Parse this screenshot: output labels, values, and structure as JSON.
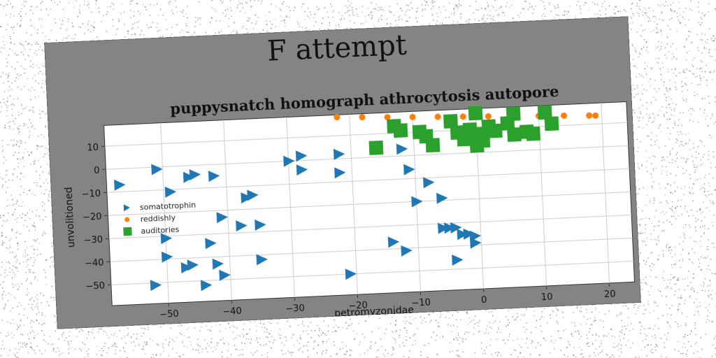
{
  "figure": {
    "suptitle": "F attempt",
    "axes_title": "puppysnatch homograph athrocytosis autopore"
  },
  "chart_data": {
    "type": "scatter",
    "title": "puppysnatch homograph athrocytosis autopore",
    "xlabel": "petromyzonidae",
    "ylabel": "unvolitioned",
    "xlim": [
      -59,
      24
    ],
    "ylim": [
      -59,
      19
    ],
    "xticks": [
      -50,
      -40,
      -30,
      -20,
      -10,
      0,
      10,
      20
    ],
    "yticks": [
      10,
      0,
      -10,
      -20,
      -30,
      -40,
      -50
    ],
    "grid": true,
    "legend_position": "center-left",
    "series": [
      {
        "name": "somatotrophin",
        "marker": "triangle-right",
        "color": "#1f77b4",
        "points": [
          [
            -57,
            -7
          ],
          [
            -51,
            -1
          ],
          [
            -49,
            -11
          ],
          [
            -46,
            -5
          ],
          [
            -45,
            -4
          ],
          [
            -42,
            -5
          ],
          [
            -52,
            -51
          ],
          [
            -50,
            -31
          ],
          [
            -50,
            -39
          ],
          [
            -47,
            -44
          ],
          [
            -46,
            -43
          ],
          [
            -44,
            -52
          ],
          [
            -42,
            -43
          ],
          [
            -41,
            -48
          ],
          [
            -43,
            -34
          ],
          [
            -41,
            -23
          ],
          [
            -38,
            -27
          ],
          [
            -37,
            -15
          ],
          [
            -36,
            -14
          ],
          [
            -35,
            -42
          ],
          [
            -35,
            -27
          ],
          [
            -30,
            0
          ],
          [
            -28,
            2
          ],
          [
            -28,
            -4
          ],
          [
            -22,
            -6
          ],
          [
            -22,
            2
          ],
          [
            -21,
            -50
          ],
          [
            -14,
            -37
          ],
          [
            -12,
            -41
          ],
          [
            -12,
            3
          ],
          [
            -11,
            -6
          ],
          [
            -10,
            -20
          ],
          [
            -8,
            -12
          ],
          [
            -6,
            -19
          ],
          [
            -6,
            -32
          ],
          [
            -5,
            -32
          ],
          [
            -4,
            -32
          ],
          [
            -3,
            -35
          ],
          [
            -2,
            -35
          ],
          [
            -1,
            -36
          ],
          [
            -1,
            -39
          ],
          [
            -4,
            -46
          ]
        ]
      },
      {
        "name": "reddishly",
        "marker": "circle",
        "color": "#ff7f0e",
        "points": [
          [
            -22,
            18
          ],
          [
            -18,
            17.5
          ],
          [
            -14,
            17
          ],
          [
            -10,
            16.6
          ],
          [
            -6,
            16.2
          ],
          [
            -2,
            15.8
          ],
          [
            2,
            15.4
          ],
          [
            6,
            15
          ],
          [
            10,
            14.6
          ],
          [
            14,
            14.2
          ],
          [
            18,
            13.8
          ],
          [
            19,
            13.6
          ]
        ]
      },
      {
        "name": "auditories",
        "marker": "square",
        "color": "#2ca02c",
        "points": [
          [
            -16,
            4
          ],
          [
            -13,
            13
          ],
          [
            -12,
            11
          ],
          [
            -9,
            10
          ],
          [
            -8,
            8
          ],
          [
            -7,
            4
          ],
          [
            -4,
            14
          ],
          [
            -3,
            9
          ],
          [
            -2,
            6
          ],
          [
            -1,
            10
          ],
          [
            0,
            17
          ],
          [
            0,
            8
          ],
          [
            0,
            3
          ],
          [
            1,
            5
          ],
          [
            2,
            11
          ],
          [
            3,
            9
          ],
          [
            5,
            12
          ],
          [
            6,
            16
          ],
          [
            6,
            7
          ],
          [
            8,
            8
          ],
          [
            9,
            7
          ],
          [
            11,
            16
          ],
          [
            12,
            11
          ]
        ]
      }
    ]
  }
}
